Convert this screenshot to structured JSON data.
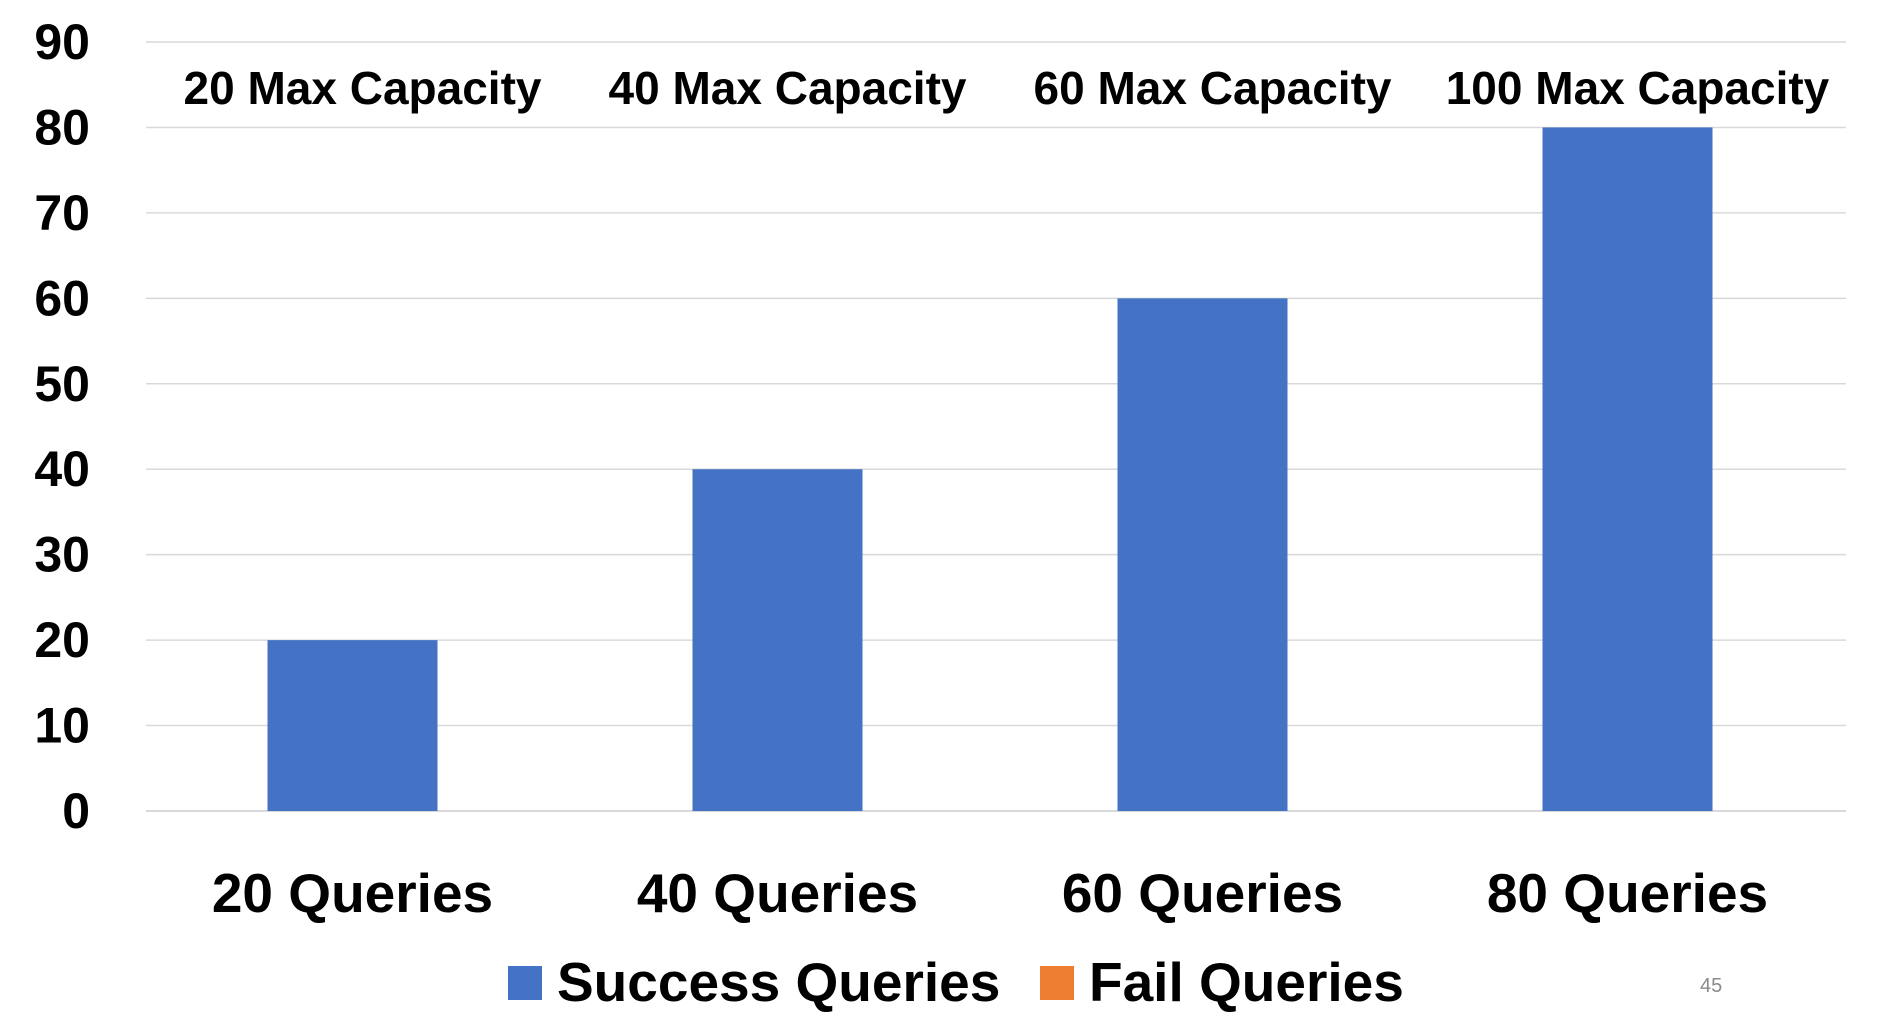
{
  "chart_data": {
    "type": "bar",
    "categories": [
      "20 Queries",
      "40 Queries",
      "60 Queries",
      "80 Queries"
    ],
    "series": [
      {
        "name": "Success Queries",
        "color": "#4472C4",
        "values": [
          20,
          40,
          60,
          80
        ]
      },
      {
        "name": "Fail Queries",
        "color": "#ED7D31",
        "values": [
          0,
          0,
          0,
          0
        ]
      }
    ],
    "annotations": [
      "20 Max Capacity",
      "40 Max Capacity",
      "60 Max Capacity",
      "100 Max Capacity"
    ],
    "ylim": [
      0,
      90
    ],
    "yticks": [
      0,
      10,
      20,
      30,
      40,
      50,
      60,
      70,
      80,
      90
    ],
    "title": "",
    "xlabel": "",
    "ylabel": "",
    "grid": true,
    "legend_position": "bottom"
  },
  "page_number": "45"
}
